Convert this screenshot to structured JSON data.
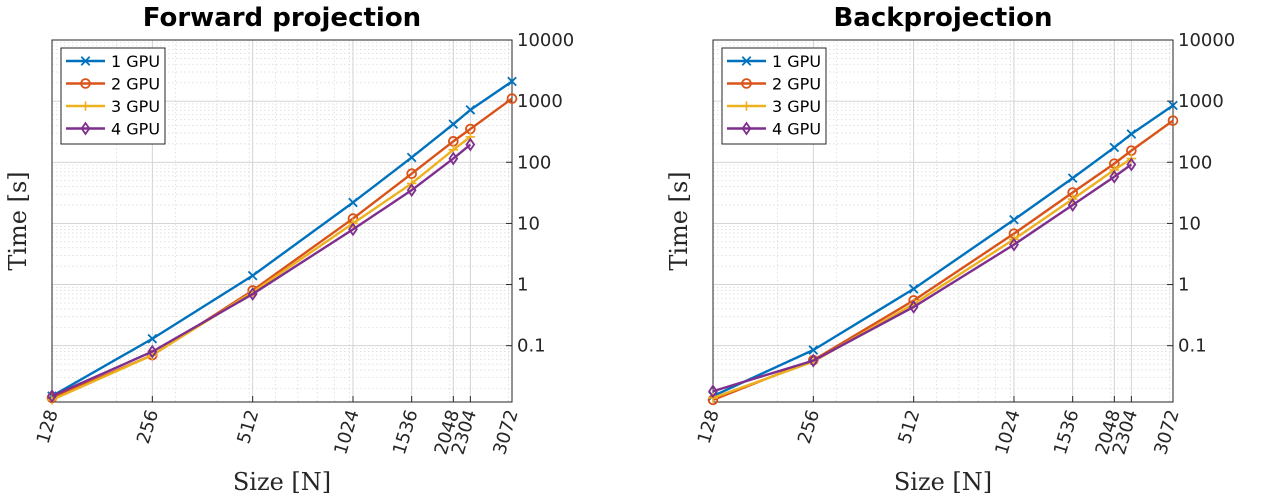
{
  "chart_data": [
    {
      "type": "line",
      "title": "Forward projection",
      "xlabel": "Size [N]",
      "ylabel": "Time [s]",
      "xscale": "log",
      "yscale": "log",
      "xlim": [
        128,
        3072
      ],
      "ylim": [
        0.012,
        10000
      ],
      "x_ticks": [
        128,
        256,
        512,
        1024,
        1536,
        2048,
        2304,
        3072
      ],
      "x_tick_labels": [
        "128",
        "256",
        "512",
        "1024",
        "1536",
        "2048",
        "2304",
        "3072"
      ],
      "y_ticks": [
        0.1,
        1,
        10,
        100,
        1000,
        10000
      ],
      "y_tick_labels": [
        "0.1",
        "1",
        "10",
        "100",
        "1000",
        "10000"
      ],
      "y_axis_side": "right",
      "grid": true,
      "legend_position": "top-left",
      "series": [
        {
          "name": "1 GPU",
          "marker": "x",
          "color": "#0072BD",
          "x": [
            128,
            256,
            512,
            1024,
            1536,
            2048,
            2304,
            3072
          ],
          "y": [
            0.015,
            0.13,
            1.4,
            22,
            120,
            420,
            720,
            2100
          ]
        },
        {
          "name": "2 GPU",
          "marker": "circle",
          "color": "#D95319",
          "x": [
            128,
            256,
            512,
            1024,
            1536,
            2048,
            2304,
            3072
          ],
          "y": [
            0.014,
            0.07,
            0.8,
            12,
            65,
            220,
            350,
            1100
          ]
        },
        {
          "name": "3 GPU",
          "marker": "plus",
          "color": "#EDB120",
          "x": [
            128,
            256,
            512,
            1024,
            1536,
            2048,
            2304
          ],
          "y": [
            0.013,
            0.07,
            0.75,
            10,
            45,
            160,
            260
          ]
        },
        {
          "name": "4 GPU",
          "marker": "diamond",
          "color": "#7E2F8E",
          "x": [
            128,
            256,
            512,
            1024,
            1536,
            2048,
            2304
          ],
          "y": [
            0.015,
            0.08,
            0.7,
            8,
            35,
            115,
            195
          ]
        }
      ]
    },
    {
      "type": "line",
      "title": "Backprojection",
      "xlabel": "Size [N]",
      "ylabel": "Time [s]",
      "xscale": "log",
      "yscale": "log",
      "xlim": [
        128,
        3072
      ],
      "ylim": [
        0.012,
        10000
      ],
      "x_ticks": [
        128,
        256,
        512,
        1024,
        1536,
        2048,
        2304,
        3072
      ],
      "x_tick_labels": [
        "128",
        "256",
        "512",
        "1024",
        "1536",
        "2048",
        "2304",
        "3072"
      ],
      "y_ticks": [
        0.1,
        1,
        10,
        100,
        1000,
        10000
      ],
      "y_tick_labels": [
        "0.1",
        "1",
        "10",
        "100",
        "1000",
        "10000"
      ],
      "y_axis_side": "right",
      "grid": true,
      "legend_position": "top-left",
      "series": [
        {
          "name": "1 GPU",
          "marker": "x",
          "color": "#0072BD",
          "x": [
            128,
            256,
            512,
            1024,
            1536,
            2048,
            2304,
            3072
          ],
          "y": [
            0.015,
            0.085,
            0.85,
            11.5,
            55,
            175,
            290,
            850
          ]
        },
        {
          "name": "2 GPU",
          "marker": "circle",
          "color": "#D95319",
          "x": [
            128,
            256,
            512,
            1024,
            1536,
            2048,
            2304,
            3072
          ],
          "y": [
            0.013,
            0.058,
            0.55,
            6.8,
            32,
            95,
            155,
            480
          ]
        },
        {
          "name": "3 GPU",
          "marker": "plus",
          "color": "#EDB120",
          "x": [
            128,
            256,
            512,
            1024,
            1536,
            2048,
            2304
          ],
          "y": [
            0.014,
            0.055,
            0.48,
            5.5,
            25,
            75,
            115
          ]
        },
        {
          "name": "4 GPU",
          "marker": "diamond",
          "color": "#7E2F8E",
          "x": [
            128,
            256,
            512,
            1024,
            1536,
            2048,
            2304
          ],
          "y": [
            0.018,
            0.057,
            0.43,
            4.5,
            20,
            58,
            92
          ]
        }
      ]
    }
  ]
}
